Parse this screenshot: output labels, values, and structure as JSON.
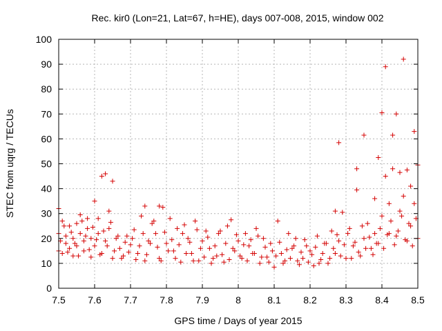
{
  "chart_data": {
    "type": "scatter",
    "title": "Rec. kir0 (Lon=21, Lat=67, h=HE), days 007-008, 2015, window 002",
    "xlabel": "GPS time / Days of year 2015",
    "ylabel": "STEC from uqrg / TECUs",
    "xlim": [
      7.5,
      8.5
    ],
    "ylim": [
      0,
      100
    ],
    "x_ticks": [
      "7.5",
      "7.6",
      "7.7",
      "7.8",
      "7.9",
      "8",
      "8.1",
      "8.2",
      "8.3",
      "8.4",
      "8.5"
    ],
    "y_ticks": [
      "0",
      "10",
      "20",
      "30",
      "40",
      "50",
      "60",
      "70",
      "80",
      "90",
      "100"
    ],
    "grid": true,
    "marker": "plus",
    "color": "#d40000",
    "points": [
      [
        7.5,
        32.0
      ],
      [
        7.5,
        15.0
      ],
      [
        7.5,
        22.0
      ],
      [
        7.51,
        14.0
      ],
      [
        7.51,
        27.0
      ],
      [
        7.52,
        18.0
      ],
      [
        7.52,
        21.0
      ],
      [
        7.53,
        16.0
      ],
      [
        7.53,
        25.0
      ],
      [
        7.54,
        13.0
      ],
      [
        7.54,
        20.0
      ],
      [
        7.55,
        17.0
      ],
      [
        7.55,
        26.0
      ],
      [
        7.56,
        22.0
      ],
      [
        7.56,
        29.5
      ],
      [
        7.57,
        19.0
      ],
      [
        7.57,
        15.0
      ],
      [
        7.58,
        24.0
      ],
      [
        7.58,
        28.0
      ],
      [
        7.59,
        20.0
      ],
      [
        7.59,
        12.5
      ],
      [
        7.6,
        35.0
      ],
      [
        7.6,
        17.0
      ],
      [
        7.61,
        22.0
      ],
      [
        7.61,
        28.0
      ],
      [
        7.62,
        45.0
      ],
      [
        7.62,
        14.0
      ],
      [
        7.63,
        46.0
      ],
      [
        7.63,
        19.0
      ],
      [
        7.64,
        31.0
      ],
      [
        7.64,
        24.0
      ],
      [
        7.65,
        12.0
      ],
      [
        7.65,
        43.0
      ],
      [
        7.66,
        20.0
      ],
      [
        7.67,
        16.0
      ],
      [
        7.68,
        13.0
      ],
      [
        7.69,
        21.0
      ],
      [
        7.7,
        17.5
      ],
      [
        7.71,
        23.5
      ],
      [
        7.72,
        14.0
      ],
      [
        7.73,
        29.0
      ],
      [
        7.74,
        33.0
      ],
      [
        7.74,
        11.0
      ],
      [
        7.75,
        19.0
      ],
      [
        7.76,
        26.0
      ],
      [
        7.77,
        22.0
      ],
      [
        7.78,
        33.0
      ],
      [
        7.78,
        12.0
      ],
      [
        7.79,
        32.5
      ],
      [
        7.8,
        18.0
      ],
      [
        7.81,
        28.0
      ],
      [
        7.82,
        15.0
      ],
      [
        7.83,
        24.0
      ],
      [
        7.84,
        10.5
      ],
      [
        7.85,
        25.5
      ],
      [
        7.86,
        20.0
      ],
      [
        7.87,
        14.0
      ],
      [
        7.88,
        27.0
      ],
      [
        7.89,
        11.0
      ],
      [
        7.9,
        19.0
      ],
      [
        7.91,
        23.0
      ],
      [
        7.92,
        16.0
      ],
      [
        7.93,
        12.0
      ],
      [
        7.94,
        13.0
      ],
      [
        7.95,
        23.0
      ],
      [
        7.96,
        10.5
      ],
      [
        7.97,
        25.0
      ],
      [
        7.98,
        27.5
      ],
      [
        7.99,
        15.0
      ],
      [
        8.0,
        19.0
      ],
      [
        8.01,
        12.0
      ],
      [
        8.02,
        22.0
      ],
      [
        8.03,
        17.0
      ],
      [
        8.04,
        14.0
      ],
      [
        8.05,
        24.0
      ],
      [
        8.06,
        10.0
      ],
      [
        8.07,
        20.0
      ],
      [
        8.08,
        12.5
      ],
      [
        8.09,
        18.0
      ],
      [
        8.1,
        8.5
      ],
      [
        8.11,
        27.0
      ],
      [
        8.12,
        14.0
      ],
      [
        8.13,
        11.0
      ],
      [
        8.14,
        22.0
      ],
      [
        8.15,
        16.0
      ],
      [
        8.16,
        20.0
      ],
      [
        8.17,
        9.5
      ],
      [
        8.18,
        12.0
      ],
      [
        8.19,
        17.0
      ],
      [
        8.2,
        15.0
      ],
      [
        8.21,
        9.0
      ],
      [
        8.22,
        21.0
      ],
      [
        8.23,
        11.5
      ],
      [
        8.24,
        18.0
      ],
      [
        8.25,
        10.0
      ],
      [
        8.26,
        23.0
      ],
      [
        8.27,
        31.0
      ],
      [
        8.27,
        14.0
      ],
      [
        8.28,
        58.5
      ],
      [
        8.28,
        19.0
      ],
      [
        8.29,
        30.5
      ],
      [
        8.3,
        12.0
      ],
      [
        8.31,
        24.0
      ],
      [
        8.32,
        17.0
      ],
      [
        8.33,
        48.0
      ],
      [
        8.33,
        39.5
      ],
      [
        8.34,
        13.0
      ],
      [
        8.35,
        61.5
      ],
      [
        8.35,
        20.0
      ],
      [
        8.36,
        26.0
      ],
      [
        8.37,
        16.0
      ],
      [
        8.38,
        36.0
      ],
      [
        8.38,
        22.0
      ],
      [
        8.39,
        52.5
      ],
      [
        8.39,
        18.0
      ],
      [
        8.4,
        70.5
      ],
      [
        8.4,
        29.0
      ],
      [
        8.41,
        45.0
      ],
      [
        8.41,
        89.0
      ],
      [
        8.42,
        34.0
      ],
      [
        8.42,
        22.0
      ],
      [
        8.43,
        61.5
      ],
      [
        8.43,
        48.0
      ],
      [
        8.44,
        70.0
      ],
      [
        8.44,
        21.0
      ],
      [
        8.45,
        46.5
      ],
      [
        8.45,
        31.0
      ],
      [
        8.46,
        92.0
      ],
      [
        8.46,
        37.0
      ],
      [
        8.47,
        19.0
      ],
      [
        8.47,
        47.5
      ],
      [
        8.48,
        41.0
      ],
      [
        8.48,
        25.0
      ],
      [
        8.49,
        63.0
      ],
      [
        8.49,
        34.0
      ],
      [
        8.5,
        49.5
      ],
      [
        8.5,
        20.0
      ],
      [
        7.505,
        19.0
      ],
      [
        7.515,
        25.0
      ],
      [
        7.525,
        14.5
      ],
      [
        7.535,
        22.5
      ],
      [
        7.545,
        18.0
      ],
      [
        7.555,
        13.0
      ],
      [
        7.565,
        27.0
      ],
      [
        7.575,
        21.0
      ],
      [
        7.585,
        15.5
      ],
      [
        7.595,
        24.5
      ],
      [
        7.605,
        19.5
      ],
      [
        7.615,
        13.5
      ],
      [
        7.625,
        23.0
      ],
      [
        7.635,
        17.0
      ],
      [
        7.645,
        26.5
      ],
      [
        7.655,
        15.0
      ],
      [
        7.665,
        21.0
      ],
      [
        7.675,
        12.0
      ],
      [
        7.685,
        18.5
      ],
      [
        7.695,
        14.5
      ],
      [
        7.705,
        20.0
      ],
      [
        7.715,
        11.5
      ],
      [
        7.725,
        17.0
      ],
      [
        7.735,
        22.0
      ],
      [
        7.745,
        13.5
      ],
      [
        7.755,
        18.0
      ],
      [
        7.765,
        27.0
      ],
      [
        7.775,
        16.5
      ],
      [
        7.785,
        11.0
      ],
      [
        7.795,
        22.5
      ],
      [
        7.805,
        15.0
      ],
      [
        7.815,
        19.5
      ],
      [
        7.825,
        12.0
      ],
      [
        7.835,
        17.5
      ],
      [
        7.845,
        22.0
      ],
      [
        7.855,
        14.0
      ],
      [
        7.865,
        18.5
      ],
      [
        7.875,
        11.0
      ],
      [
        7.885,
        23.5
      ],
      [
        7.895,
        16.0
      ],
      [
        7.905,
        12.5
      ],
      [
        7.915,
        20.5
      ],
      [
        7.925,
        10.0
      ],
      [
        7.935,
        17.0
      ],
      [
        7.945,
        22.0
      ],
      [
        7.955,
        13.5
      ],
      [
        7.965,
        18.0
      ],
      [
        7.975,
        11.5
      ],
      [
        7.985,
        16.0
      ],
      [
        7.995,
        21.5
      ],
      [
        8.005,
        13.0
      ],
      [
        8.015,
        17.5
      ],
      [
        8.025,
        11.0
      ],
      [
        8.035,
        19.5
      ],
      [
        8.045,
        14.0
      ],
      [
        8.055,
        21.0
      ],
      [
        8.065,
        12.5
      ],
      [
        8.075,
        16.5
      ],
      [
        8.085,
        10.5
      ],
      [
        8.095,
        15.0
      ],
      [
        8.105,
        13.0
      ],
      [
        8.115,
        18.5
      ],
      [
        8.125,
        10.0
      ],
      [
        8.135,
        15.5
      ],
      [
        8.145,
        12.0
      ],
      [
        8.155,
        17.0
      ],
      [
        8.165,
        11.0
      ],
      [
        8.175,
        14.5
      ],
      [
        8.185,
        19.5
      ],
      [
        8.195,
        10.5
      ],
      [
        8.205,
        13.5
      ],
      [
        8.215,
        16.5
      ],
      [
        8.225,
        10.0
      ],
      [
        8.235,
        14.0
      ],
      [
        8.245,
        18.0
      ],
      [
        8.255,
        12.0
      ],
      [
        8.265,
        16.0
      ],
      [
        8.275,
        21.5
      ],
      [
        8.285,
        13.0
      ],
      [
        8.295,
        17.5
      ],
      [
        8.305,
        22.0
      ],
      [
        8.315,
        12.0
      ],
      [
        8.325,
        18.5
      ],
      [
        8.335,
        14.5
      ],
      [
        8.345,
        25.0
      ],
      [
        8.355,
        16.0
      ],
      [
        8.365,
        20.5
      ],
      [
        8.375,
        13.5
      ],
      [
        8.385,
        18.0
      ],
      [
        8.395,
        24.0
      ],
      [
        8.405,
        16.0
      ],
      [
        8.415,
        21.5
      ],
      [
        8.425,
        27.0
      ],
      [
        8.435,
        17.5
      ],
      [
        8.445,
        23.0
      ],
      [
        8.455,
        29.0
      ],
      [
        8.465,
        19.5
      ],
      [
        8.475,
        26.0
      ],
      [
        8.485,
        17.0
      ],
      [
        8.495,
        28.0
      ]
    ]
  }
}
